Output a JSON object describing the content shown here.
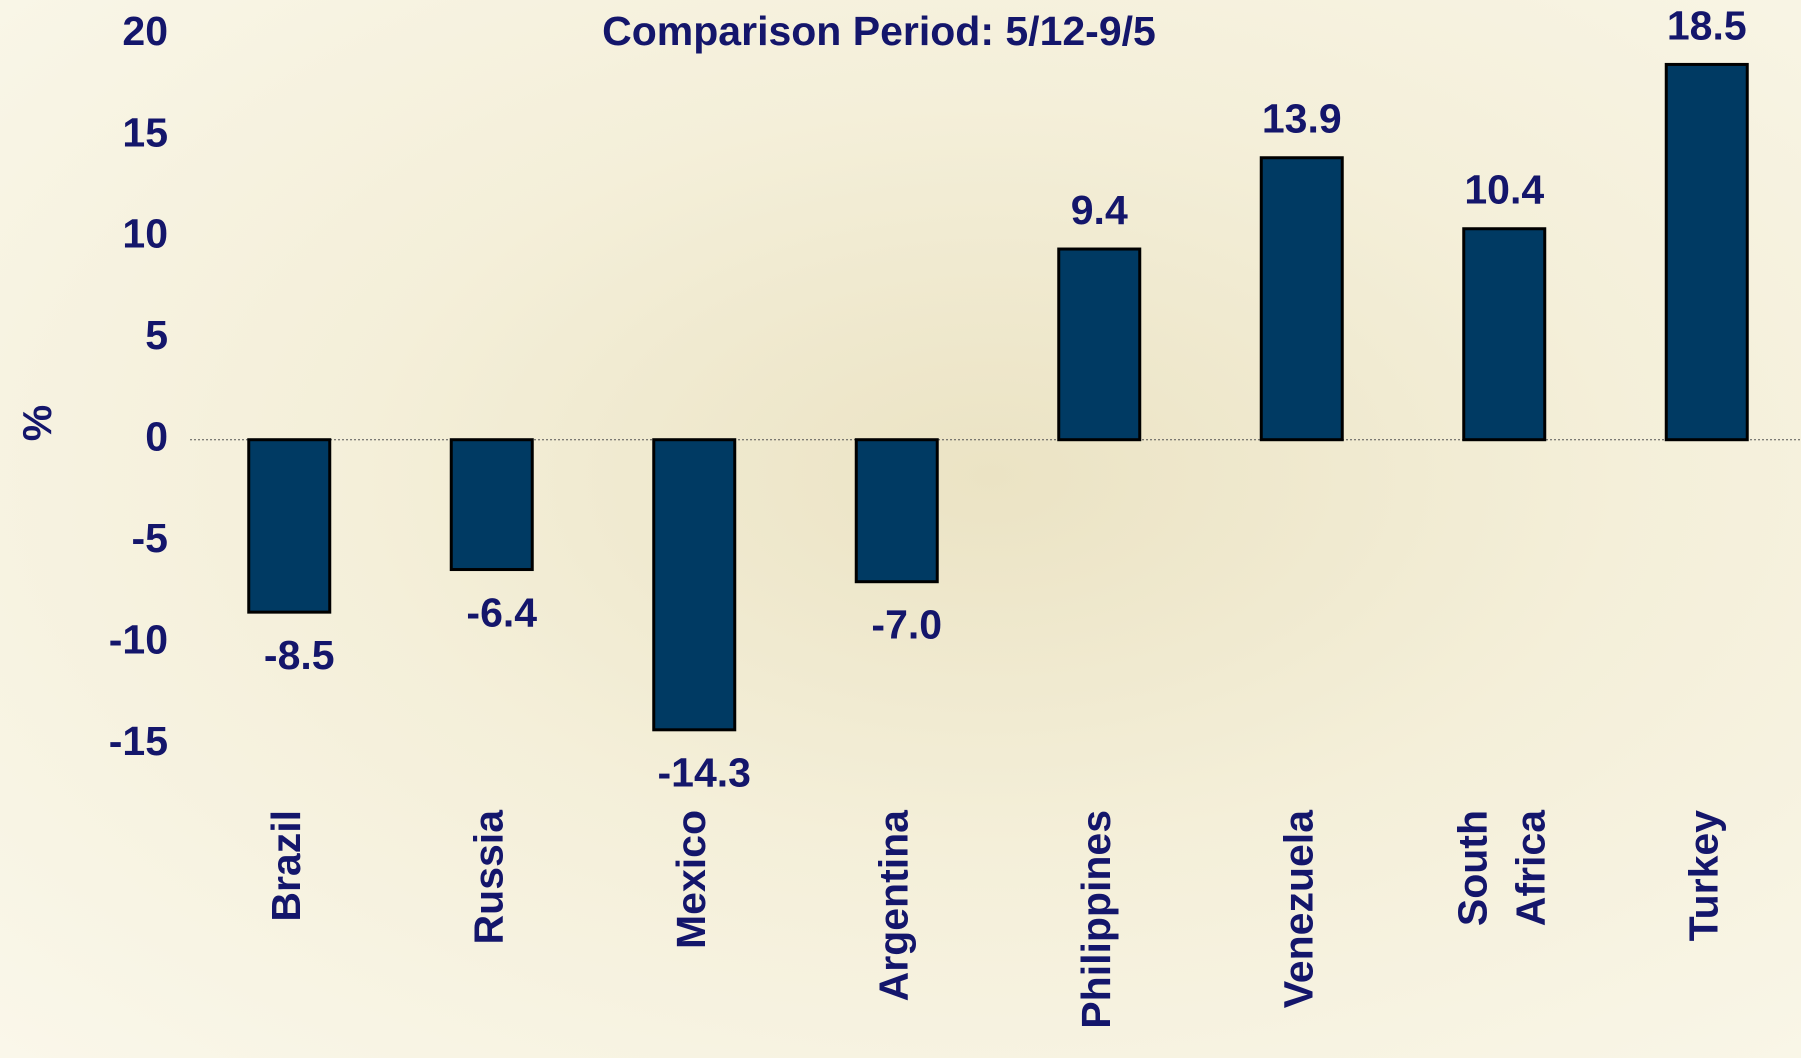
{
  "chart_data": {
    "type": "bar",
    "title": "Comparison Period: 5/12-9/5",
    "y_label": "%",
    "categories": [
      "Brazil",
      "Russia",
      "Mexico",
      "Argentina",
      "Philippines",
      "Venezuela",
      "South Africa",
      "Turkey"
    ],
    "values": [
      -8.5,
      -6.4,
      -14.3,
      -7,
      9.4,
      13.9,
      10.4,
      18.5
    ],
    "value_labels": [
      "-8.5",
      "-6.4",
      "-14.3",
      "-7.0",
      "9.4",
      "13.9",
      "10.4",
      "18.5"
    ],
    "color": "#003a63",
    "ylim": [
      -15,
      20
    ],
    "yticks": [
      -15,
      -10,
      -5,
      0,
      5,
      10,
      15,
      20
    ],
    "grid": false
  }
}
